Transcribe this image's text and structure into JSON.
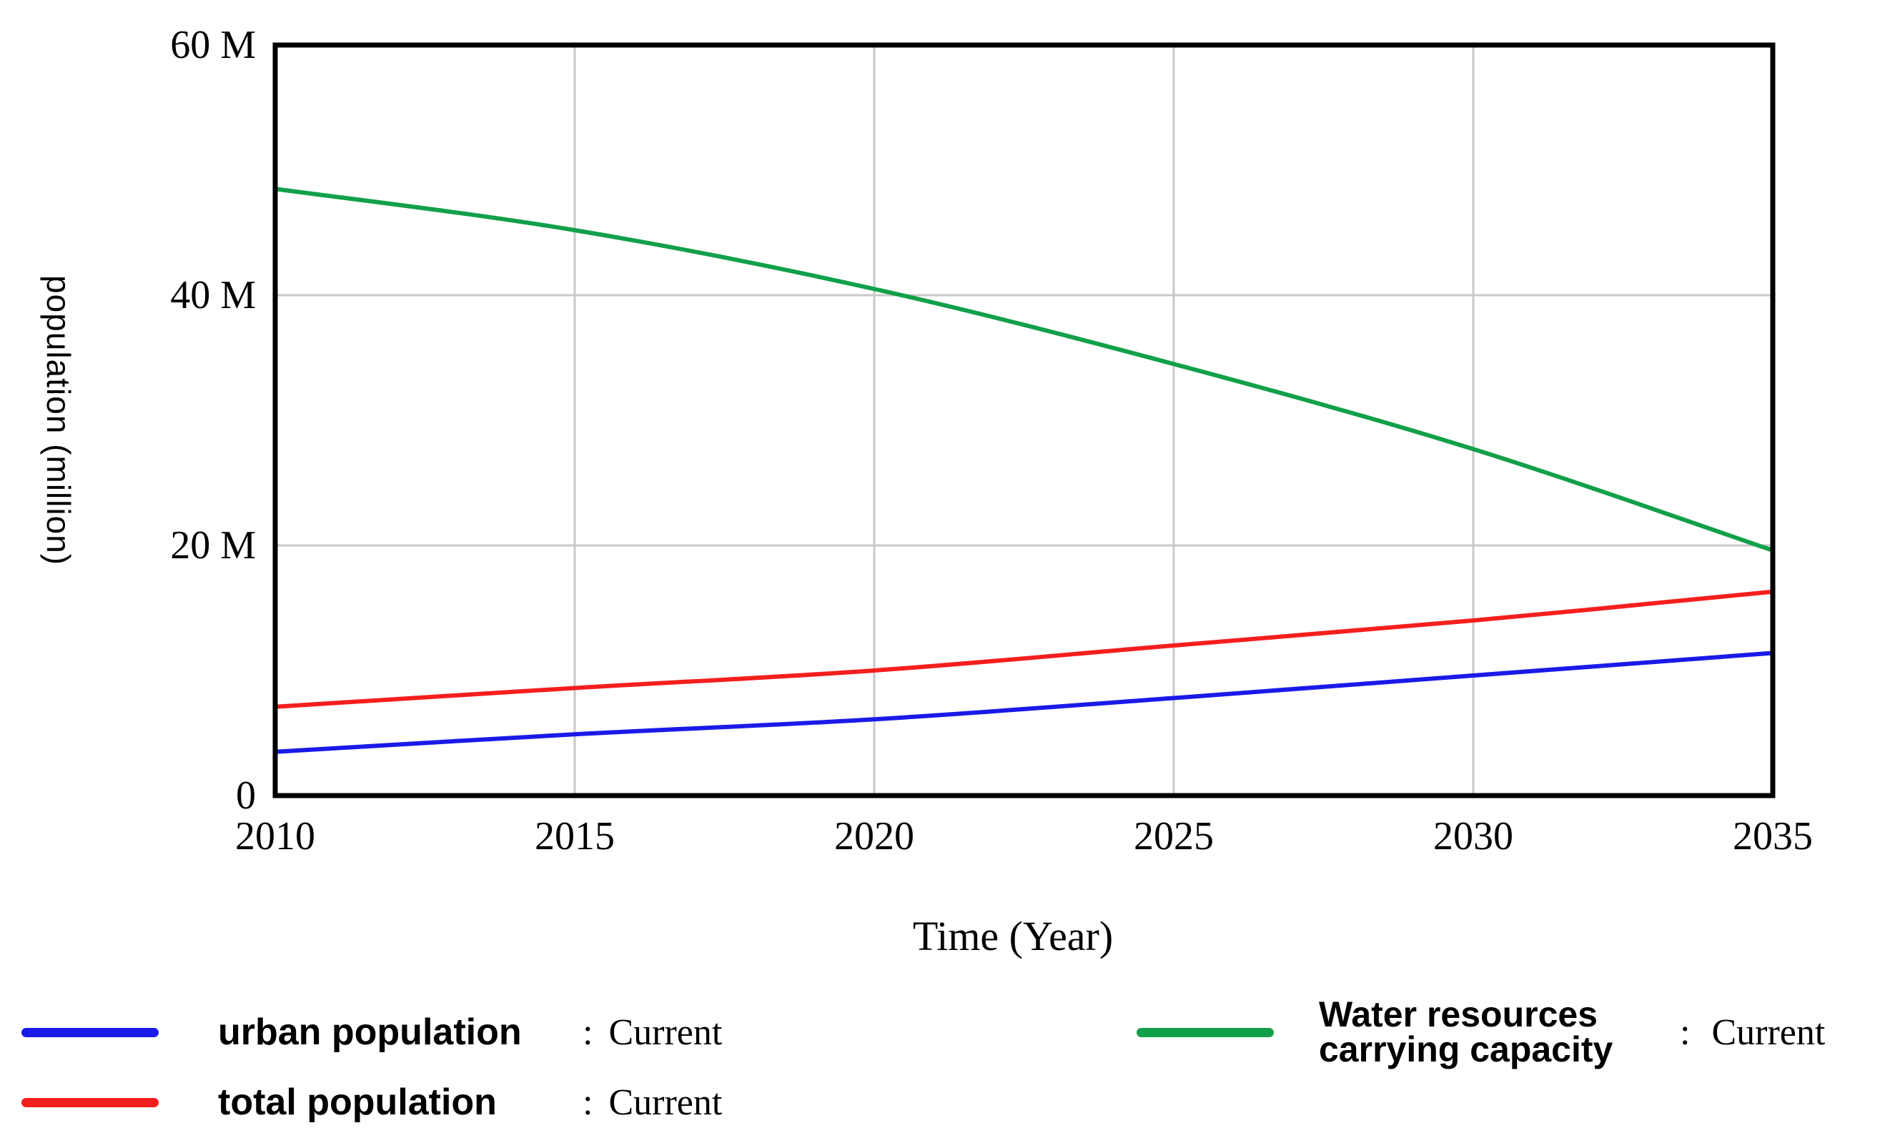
{
  "chart_data": {
    "type": "line",
    "title": "",
    "xlabel": "Time (Year)",
    "ylabel": "population (million)",
    "x": [
      2010,
      2015,
      2020,
      2025,
      2030,
      2035
    ],
    "xlim": [
      2010,
      2035
    ],
    "ylim": [
      0,
      60
    ],
    "y_unit": "M",
    "grid": true,
    "legend_position": "bottom",
    "series": [
      {
        "name": "urban population",
        "run": "Current",
        "color": "#1a1ae8",
        "values": [
          3.5,
          4.9,
          6.1,
          7.8,
          9.6,
          11.4
        ]
      },
      {
        "name": "total population",
        "run": "Current",
        "color": "#f51e1e",
        "values": [
          7.1,
          8.6,
          10.0,
          12.0,
          14.0,
          16.3
        ]
      },
      {
        "name": "Water resources carrying capacity",
        "run": "Current",
        "color": "#12a04a",
        "values": [
          48.5,
          45.2,
          40.5,
          34.5,
          27.7,
          19.6
        ]
      }
    ]
  },
  "axes": {
    "x_tick_labels": [
      "2010",
      "2015",
      "2020",
      "2025",
      "2030",
      "2035"
    ],
    "y_tick_labels": [
      "60 M",
      "40 M",
      "20 M",
      "0"
    ],
    "y_tick_values": [
      60,
      40,
      20,
      0
    ]
  },
  "legend": {
    "separator": ":",
    "left_entries": [
      {
        "label": "urban population",
        "run": "Current",
        "color": "#1a1ae8"
      },
      {
        "label": "total population",
        "run": "Current",
        "color": "#f51e1e"
      }
    ],
    "right_entries": [
      {
        "label_lines": [
          "Water resources",
          "carrying capacity"
        ],
        "run": "Current",
        "color": "#12a04a"
      }
    ]
  },
  "colors": {
    "grid": "#c8c8c8",
    "frame": "#000000",
    "background": "#ffffff"
  }
}
